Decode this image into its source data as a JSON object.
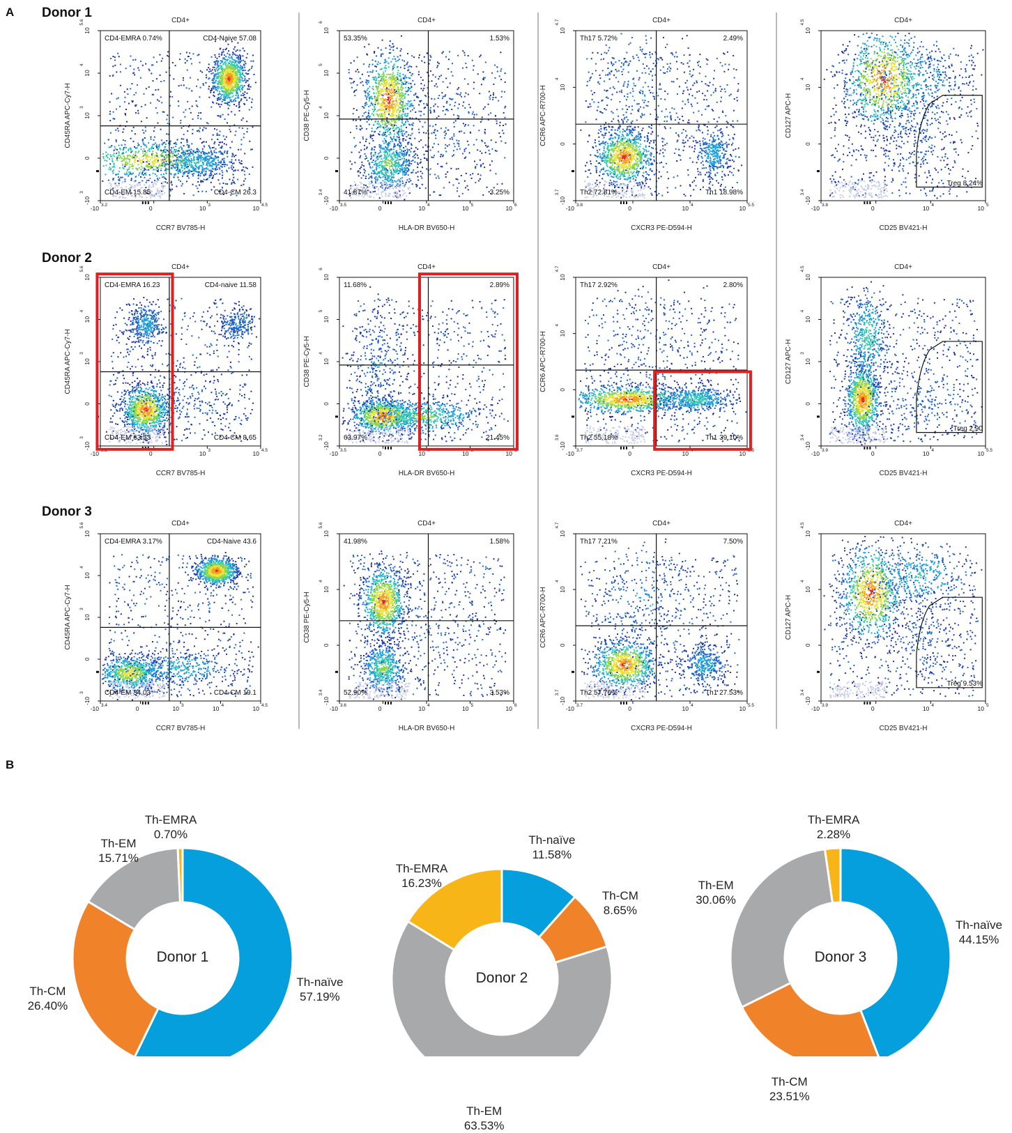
{
  "panel_labels": {
    "a": "A",
    "b": "B"
  },
  "donor_titles": [
    "Donor 1",
    "Donor 2",
    "Donor 3"
  ],
  "plot_title": "CD4+",
  "colors": {
    "density": [
      "#1b2f9e",
      "#1e64c8",
      "#1ea0d8",
      "#33c7b4",
      "#8cd64a",
      "#e8e23a",
      "#f5a020",
      "#e8281e"
    ],
    "background_dots": "#c8cbe8",
    "gate_line": "#111111",
    "highlight_box": "#e02020",
    "th_naive": "#059fdd",
    "th_cm": "#f0832a",
    "th_em": "#a7a9ab",
    "th_emra": "#f7b518"
  },
  "icons": {
    "gate_marker": "tick-marks"
  },
  "chart_data": [
    {
      "type": "scatter",
      "panel": "A",
      "donor": "Donor 1",
      "title": "CD4+",
      "xlabel": "CCR7 BV785-H",
      "ylabel": "CD45RA APC-Cy7-H",
      "x_ticks": [
        [
          "-10",
          "3.2"
        ],
        [
          "0",
          ""
        ],
        [
          "10",
          "3"
        ],
        [
          "10",
          "4.5"
        ]
      ],
      "y_ticks": [
        [
          "-10",
          "3"
        ],
        [
          "0",
          ""
        ],
        [
          "10",
          "3"
        ],
        [
          "10",
          "4"
        ],
        [
          "10",
          "5.6"
        ]
      ],
      "quadrants": [
        {
          "name": "CD4-EMRA",
          "value": "0.74%"
        },
        {
          "name": "CD4-Naive",
          "value": "57.08"
        },
        {
          "name": "CD4-EM",
          "value": "15.85"
        },
        {
          "name": "CD4-CM",
          "value": "26.3"
        }
      ]
    },
    {
      "type": "scatter",
      "panel": "A",
      "donor": "Donor 1",
      "title": "CD4+",
      "xlabel": "HLA-DR BV650-H",
      "ylabel": "CD38 PE-Cy5-H",
      "x_ticks": [
        [
          "-10",
          "3.5"
        ],
        [
          "0",
          ""
        ],
        [
          "10",
          "4"
        ],
        [
          "10",
          "5"
        ],
        [
          "10",
          "6"
        ]
      ],
      "y_ticks": [
        [
          "-10",
          "3.4"
        ],
        [
          "0",
          ""
        ],
        [
          "10",
          "4"
        ],
        [
          "10",
          "5"
        ],
        [
          "10",
          "6"
        ]
      ],
      "quadrants": [
        {
          "name": "",
          "value": "53.35%"
        },
        {
          "name": "",
          "value": "1.53%"
        },
        {
          "name": "",
          "value": "41.87%"
        },
        {
          "name": "",
          "value": "3.25%"
        }
      ]
    },
    {
      "type": "scatter",
      "panel": "A",
      "donor": "Donor 1",
      "title": "CD4+",
      "xlabel": "CXCR3 PE-D594-H",
      "ylabel": "CCR6 APC-R700-H",
      "x_ticks": [
        [
          "-10",
          "3.8"
        ],
        [
          "0",
          ""
        ],
        [
          "10",
          "4"
        ],
        [
          "10",
          "5.5"
        ]
      ],
      "y_ticks": [
        [
          "-10",
          "3.7"
        ],
        [
          "0",
          ""
        ],
        [
          "10",
          "4"
        ],
        [
          "10",
          "4.7"
        ]
      ],
      "quadrants": [
        {
          "name": "Th17",
          "value": "5.72%"
        },
        {
          "name": "",
          "value": "2.49%"
        },
        {
          "name": "Th2",
          "value": "72.81%"
        },
        {
          "name": "Th1",
          "value": "18.98%"
        }
      ]
    },
    {
      "type": "scatter",
      "panel": "A",
      "donor": "Donor 1",
      "title": "CD4+",
      "xlabel": "CD25 BV421-H",
      "ylabel": "CD127 APC-H",
      "x_ticks": [
        [
          "-10",
          "3.8"
        ],
        [
          "0",
          ""
        ],
        [
          "10",
          "4"
        ],
        [
          "10",
          "5"
        ]
      ],
      "y_ticks": [
        [
          "-10",
          "3.4"
        ],
        [
          "0",
          ""
        ],
        [
          "10",
          "4"
        ],
        [
          "10",
          "4.5"
        ]
      ],
      "quadrants": [
        {
          "name": "Treg",
          "value": "8.24%"
        }
      ]
    },
    {
      "type": "scatter",
      "panel": "A",
      "donor": "Donor 2",
      "title": "CD4+",
      "xlabel": "CCR7 BV785-H",
      "ylabel": "CD45RA APC-Cy7-H",
      "x_ticks": [
        [
          "-10",
          "3.2"
        ],
        [
          "0",
          ""
        ],
        [
          "10",
          "3"
        ],
        [
          "10",
          "4.5"
        ]
      ],
      "y_ticks": [
        [
          "-10",
          "3"
        ],
        [
          "0",
          ""
        ],
        [
          "10",
          "3"
        ],
        [
          "10",
          "4"
        ],
        [
          "10",
          "5.6"
        ]
      ],
      "quadrants": [
        {
          "name": "CD4-EMRA",
          "value": "16.23"
        },
        {
          "name": "CD4-naive",
          "value": "11.58"
        },
        {
          "name": "CD4-EM",
          "value": "63.53"
        },
        {
          "name": "CD4-CM",
          "value": "8.65"
        }
      ]
    },
    {
      "type": "scatter",
      "panel": "A",
      "donor": "Donor 2",
      "title": "CD4+",
      "xlabel": "HLA-DR BV650-H",
      "ylabel": "CD38 PE-Cy5-H",
      "x_ticks": [
        [
          "-10",
          "3.5"
        ],
        [
          "0",
          ""
        ],
        [
          "10",
          "4"
        ],
        [
          "10",
          "5"
        ],
        [
          "10",
          "6"
        ]
      ],
      "y_ticks": [
        [
          "-10",
          "3.2"
        ],
        [
          "0",
          ""
        ],
        [
          "10",
          "4"
        ],
        [
          "10",
          "5"
        ],
        [
          "10",
          "6"
        ]
      ],
      "quadrants": [
        {
          "name": "",
          "value": "11.68%"
        },
        {
          "name": "",
          "value": "2.89%"
        },
        {
          "name": "",
          "value": "63.97%"
        },
        {
          "name": "",
          "value": "21.45%"
        }
      ]
    },
    {
      "type": "scatter",
      "panel": "A",
      "donor": "Donor 2",
      "title": "CD4+",
      "xlabel": "CXCR3 PE-D594-H",
      "ylabel": "CCR6 APC-R700-H",
      "x_ticks": [
        [
          "-10",
          "3.7"
        ],
        [
          "0",
          ""
        ],
        [
          "10",
          "4"
        ],
        [
          "10",
          "5.5"
        ]
      ],
      "y_ticks": [
        [
          "-10",
          "3.6"
        ],
        [
          "0",
          ""
        ],
        [
          "10",
          "4"
        ],
        [
          "10",
          "4.7"
        ]
      ],
      "quadrants": [
        {
          "name": "Th17",
          "value": "2.92%"
        },
        {
          "name": "",
          "value": "2.80%"
        },
        {
          "name": "Th2",
          "value": "55.18%"
        },
        {
          "name": "Th1",
          "value": "39.10%"
        }
      ]
    },
    {
      "type": "scatter",
      "panel": "A",
      "donor": "Donor 2",
      "title": "CD4+",
      "xlabel": "CD25 BV421-H",
      "ylabel": "CD127 APC-H",
      "x_ticks": [
        [
          "-10",
          "3.9"
        ],
        [
          "0",
          ""
        ],
        [
          "10",
          "4"
        ],
        [
          "10",
          "5.5"
        ]
      ],
      "y_ticks": [
        [
          "-10",
          "3.4"
        ],
        [
          "0",
          ""
        ],
        [
          "10",
          "3"
        ],
        [
          "10",
          "4"
        ],
        [
          "10",
          "4.5"
        ]
      ],
      "quadrants": [
        {
          "name": "Treg",
          "value": "2.90"
        }
      ]
    },
    {
      "type": "scatter",
      "panel": "A",
      "donor": "Donor 3",
      "title": "CD4+",
      "xlabel": "CCR7 BV785-H",
      "ylabel": "CD45RA APC-Cy7-H",
      "x_ticks": [
        [
          "-10",
          "3.4"
        ],
        [
          "0",
          ""
        ],
        [
          "10",
          "3"
        ],
        [
          "10",
          "4"
        ],
        [
          "10",
          "4.5"
        ]
      ],
      "y_ticks": [
        [
          "-10",
          "3"
        ],
        [
          "0",
          ""
        ],
        [
          "10",
          "3"
        ],
        [
          "10",
          "4"
        ],
        [
          "10",
          "5.6"
        ]
      ],
      "quadrants": [
        {
          "name": "CD4-EMRA",
          "value": "3.17%"
        },
        {
          "name": "CD4-Naive",
          "value": "43.6"
        },
        {
          "name": "CD4-EM",
          "value": "34.03"
        },
        {
          "name": "CD4-CM",
          "value": "19.1"
        }
      ]
    },
    {
      "type": "scatter",
      "panel": "A",
      "donor": "Donor 3",
      "title": "CD4+",
      "xlabel": "HLA-DR BV650-H",
      "ylabel": "CD38 PE-Cy5-H",
      "x_ticks": [
        [
          "-10",
          "3.6"
        ],
        [
          "0",
          ""
        ],
        [
          "10",
          "4"
        ],
        [
          "10",
          "5"
        ],
        [
          "10",
          "6"
        ]
      ],
      "y_ticks": [
        [
          "-10",
          "3.4"
        ],
        [
          "0",
          ""
        ],
        [
          "10",
          "4"
        ],
        [
          "10",
          "5.6"
        ]
      ],
      "quadrants": [
        {
          "name": "",
          "value": "41.98%"
        },
        {
          "name": "",
          "value": "1.58%"
        },
        {
          "name": "",
          "value": "52.90%"
        },
        {
          "name": "",
          "value": "3.53%"
        }
      ]
    },
    {
      "type": "scatter",
      "panel": "A",
      "donor": "Donor 3",
      "title": "CD4+",
      "xlabel": "CXCR3 PE-D594-H",
      "ylabel": "CCR6 APC-R700-H",
      "x_ticks": [
        [
          "-10",
          "3.7"
        ],
        [
          "0",
          ""
        ],
        [
          "10",
          "4"
        ],
        [
          "10",
          "5.5"
        ]
      ],
      "y_ticks": [
        [
          "-10",
          "3.7"
        ],
        [
          "0",
          ""
        ],
        [
          "10",
          "4"
        ],
        [
          "10",
          "4.7"
        ]
      ],
      "quadrants": [
        {
          "name": "Th17",
          "value": "7.21%"
        },
        {
          "name": "",
          "value": "7.50%"
        },
        {
          "name": "Th2",
          "value": "57.76%"
        },
        {
          "name": "Th1",
          "value": "27.53%"
        }
      ]
    },
    {
      "type": "scatter",
      "panel": "A",
      "donor": "Donor 3",
      "title": "CD4+",
      "xlabel": "CD25 BV421-H",
      "ylabel": "CD127 APC-H",
      "x_ticks": [
        [
          "-10",
          "3.9"
        ],
        [
          "0",
          ""
        ],
        [
          "10",
          "4"
        ],
        [
          "10",
          "5"
        ]
      ],
      "y_ticks": [
        [
          "-10",
          "3.4"
        ],
        [
          "0",
          ""
        ],
        [
          "10",
          "4"
        ],
        [
          "10",
          "4.5"
        ]
      ],
      "quadrants": [
        {
          "name": "Treg",
          "value": "9.53%"
        }
      ]
    },
    {
      "type": "pie",
      "panel": "B",
      "center_label": "Donor 1",
      "slices": [
        {
          "name": "Th-naïve",
          "value": 57.19,
          "label": "57.19%"
        },
        {
          "name": "Th-CM",
          "value": 26.4,
          "label": "26.40%"
        },
        {
          "name": "Th-EM",
          "value": 15.71,
          "label": "15.71%"
        },
        {
          "name": "Th-EMRA",
          "value": 0.7,
          "label": "0.70%"
        }
      ]
    },
    {
      "type": "pie",
      "panel": "B",
      "center_label": "Donor 2",
      "slices": [
        {
          "name": "Th-naïve",
          "value": 11.58,
          "label": "11.58%"
        },
        {
          "name": "Th-CM",
          "value": 8.65,
          "label": "8.65%"
        },
        {
          "name": "Th-EM",
          "value": 63.53,
          "label": "63.53%"
        },
        {
          "name": "Th-EMRA",
          "value": 16.23,
          "label": "16.23%"
        }
      ]
    },
    {
      "type": "pie",
      "panel": "B",
      "center_label": "Donor 3",
      "slices": [
        {
          "name": "Th-naïve",
          "value": 44.15,
          "label": "44.15%"
        },
        {
          "name": "Th-CM",
          "value": 23.51,
          "label": "23.51%"
        },
        {
          "name": "Th-EM",
          "value": 30.06,
          "label": "30.06%"
        },
        {
          "name": "Th-EMRA",
          "value": 2.28,
          "label": "2.28%"
        }
      ]
    }
  ]
}
